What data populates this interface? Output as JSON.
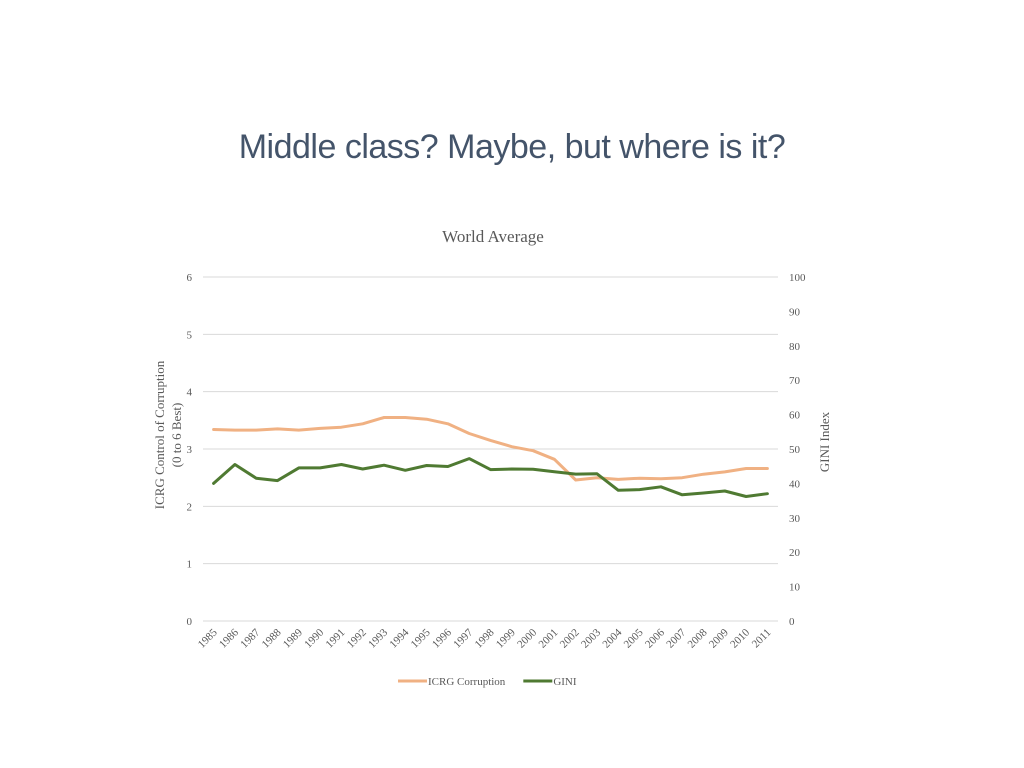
{
  "slide": {
    "title": "Middle class? Maybe, but where is it?"
  },
  "chart_data": {
    "type": "line",
    "title": "World Average",
    "y_left_label_lines": [
      "ICRG Control of Corruption",
      "(0 to 6 Best)"
    ],
    "y_right_label": "GINI Index",
    "y_left_range": [
      0,
      6
    ],
    "y_left_ticks": [
      "0",
      "1",
      "2",
      "3",
      "4",
      "5",
      "6"
    ],
    "y_right_range": [
      0,
      100
    ],
    "y_right_ticks": [
      "0",
      "10",
      "20",
      "30",
      "40",
      "50",
      "60",
      "70",
      "80",
      "90",
      "100"
    ],
    "grid": true,
    "legend_position": "bottom",
    "categories": [
      "1985",
      "1986",
      "1987",
      "1988",
      "1989",
      "1990",
      "1991",
      "1992",
      "1993",
      "1994",
      "1995",
      "1996",
      "1997",
      "1998",
      "1999",
      "2000",
      "2001",
      "2002",
      "2003",
      "2004",
      "2005",
      "2006",
      "2007",
      "2008",
      "2009",
      "2010",
      "2011"
    ],
    "series": [
      {
        "name": "ICRG Corruption",
        "axis": "left",
        "color": "#f0b183",
        "values": [
          3.34,
          3.33,
          3.33,
          3.35,
          3.33,
          3.36,
          3.38,
          3.44,
          3.55,
          3.55,
          3.52,
          3.44,
          3.27,
          3.15,
          3.04,
          2.97,
          2.82,
          2.46,
          2.5,
          2.47,
          2.49,
          2.48,
          2.5,
          2.56,
          2.6,
          2.66,
          2.66
        ]
      },
      {
        "name": "GINI",
        "axis": "right",
        "color": "#4f7a32",
        "values": [
          40,
          45.5,
          41.5,
          40.8,
          44.5,
          44.5,
          45.5,
          44.2,
          45.3,
          43.8,
          45.2,
          44.9,
          47.2,
          44,
          44.2,
          44.1,
          43.4,
          42.7,
          42.8,
          38,
          38.2,
          39,
          36.7,
          37.2,
          37.8,
          36.2,
          37
        ]
      }
    ]
  }
}
